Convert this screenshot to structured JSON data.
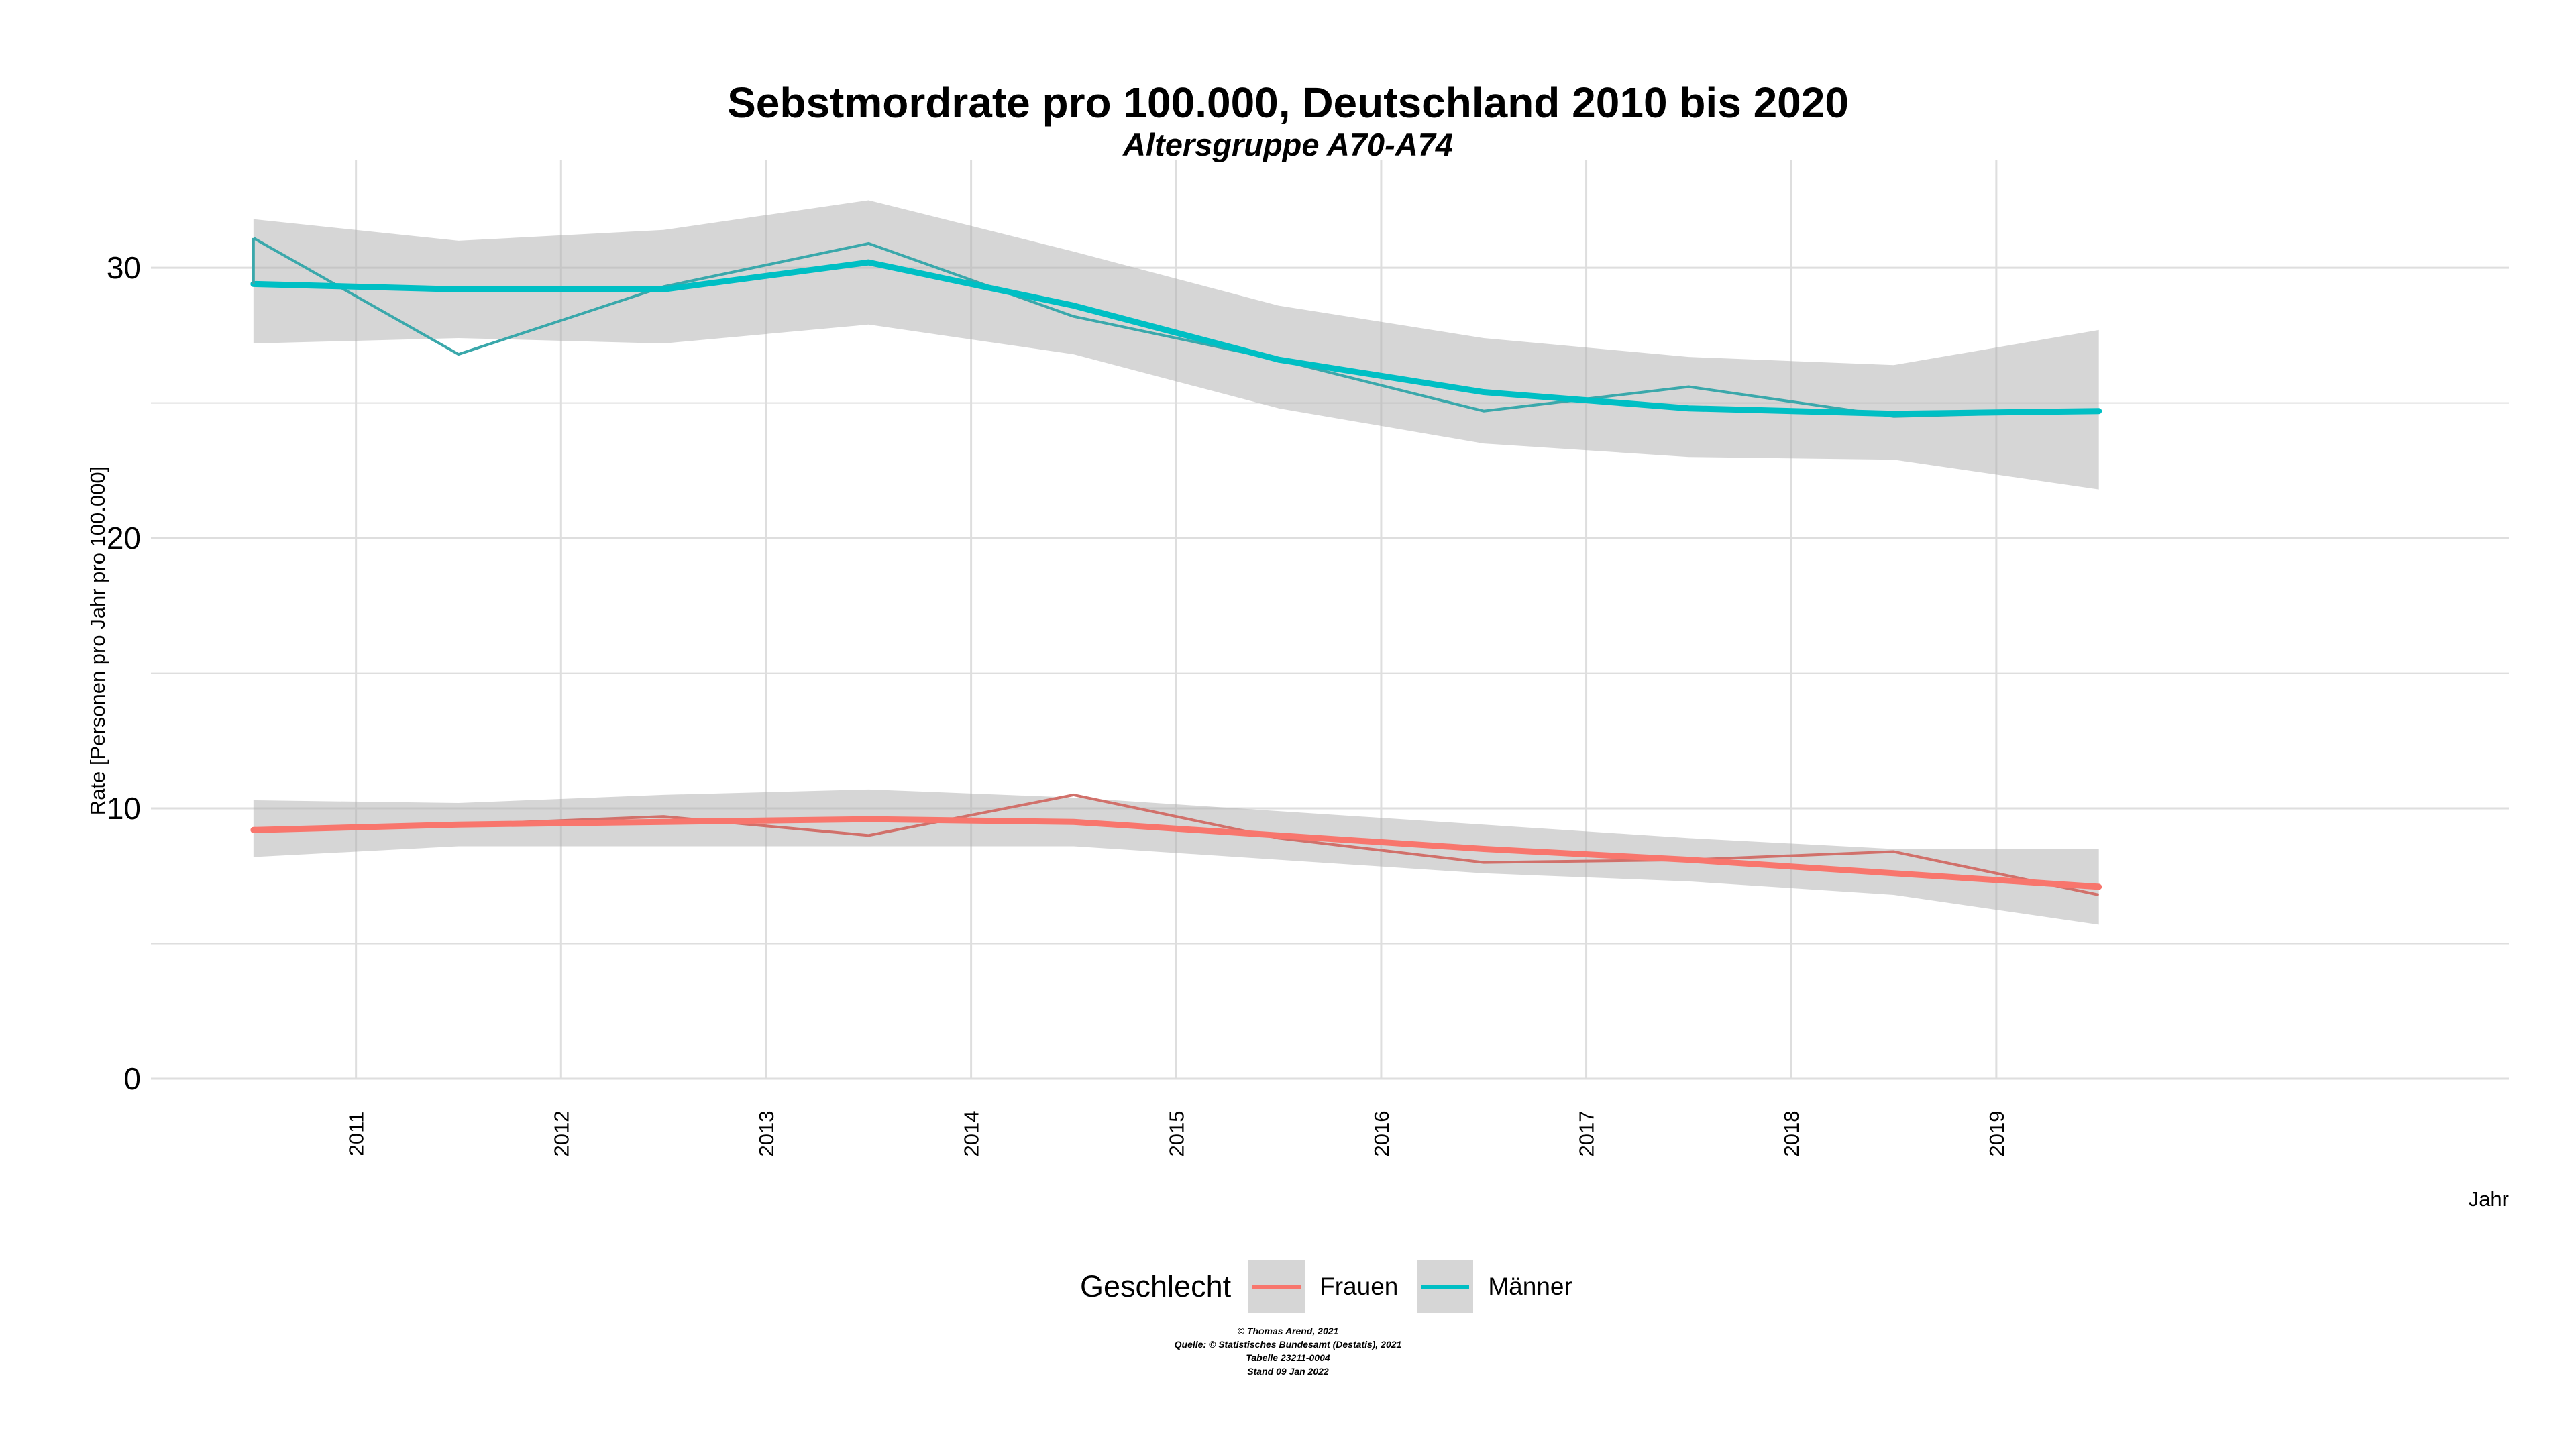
{
  "title": "Sebstmordrate pro 100.000, Deutschland  2010 bis 2020",
  "subtitle": "Altersgruppe A70-A74",
  "legend": {
    "title": "Geschlecht",
    "items": [
      {
        "label": "Frauen",
        "color": "#f8766d"
      },
      {
        "label": "Männer",
        "color": "#00bfc4"
      }
    ]
  },
  "credits": [
    "© Thomas Arend, 2021",
    "Quelle: © Statistisches Bundesamt (Destatis), 2021",
    "Tabelle 23211-0004",
    "Stand 09 Jan 2022"
  ],
  "chart_data": {
    "type": "line",
    "xlabel": "Jahr",
    "ylabel": "Rate [Personen pro Jahr pro 100.000]",
    "xlim": [
      2010.0,
      2021.5
    ],
    "ylim": [
      0,
      34
    ],
    "x_ticks": [
      2011,
      2012,
      2013,
      2014,
      2015,
      2016,
      2017,
      2018,
      2019
    ],
    "y_ticks": [
      0,
      10,
      20,
      30
    ],
    "grid": true,
    "legend_position": "bottom",
    "x": [
      2010.5,
      2011.5,
      2012.5,
      2013.5,
      2014.5,
      2015.5,
      2016.5,
      2017.5,
      2018.5,
      2019.5
    ],
    "series": [
      {
        "name": "Frauen",
        "color": "#f8766d",
        "observed_color": "#d1706a",
        "values": [
          9.2,
          9.4,
          9.7,
          9.0,
          10.5,
          8.9,
          8.0,
          8.1,
          8.4,
          6.8
        ],
        "trend": [
          9.2,
          9.4,
          9.5,
          9.6,
          9.5,
          9.0,
          8.5,
          8.1,
          7.6,
          7.1
        ],
        "band_lower": [
          8.2,
          8.6,
          8.6,
          8.6,
          8.6,
          8.1,
          7.6,
          7.3,
          6.8,
          5.7
        ],
        "band_upper": [
          10.3,
          10.2,
          10.5,
          10.7,
          10.4,
          9.9,
          9.4,
          8.9,
          8.5,
          8.5
        ]
      },
      {
        "name": "Männer",
        "color": "#00bfc4",
        "observed_color": "#3aa8ab",
        "values": [
          31.1,
          26.8,
          29.3,
          30.9,
          28.2,
          26.6,
          24.7,
          25.6,
          24.5,
          24.7
        ],
        "trend": [
          29.4,
          29.2,
          29.2,
          30.2,
          28.6,
          26.6,
          25.4,
          24.8,
          24.6,
          24.7
        ],
        "band_lower": [
          27.2,
          27.4,
          27.2,
          27.9,
          26.8,
          24.8,
          23.5,
          23.0,
          22.9,
          21.8
        ],
        "band_upper": [
          31.8,
          31.0,
          31.4,
          32.5,
          30.6,
          28.6,
          27.4,
          26.7,
          26.4,
          27.7
        ]
      }
    ]
  }
}
